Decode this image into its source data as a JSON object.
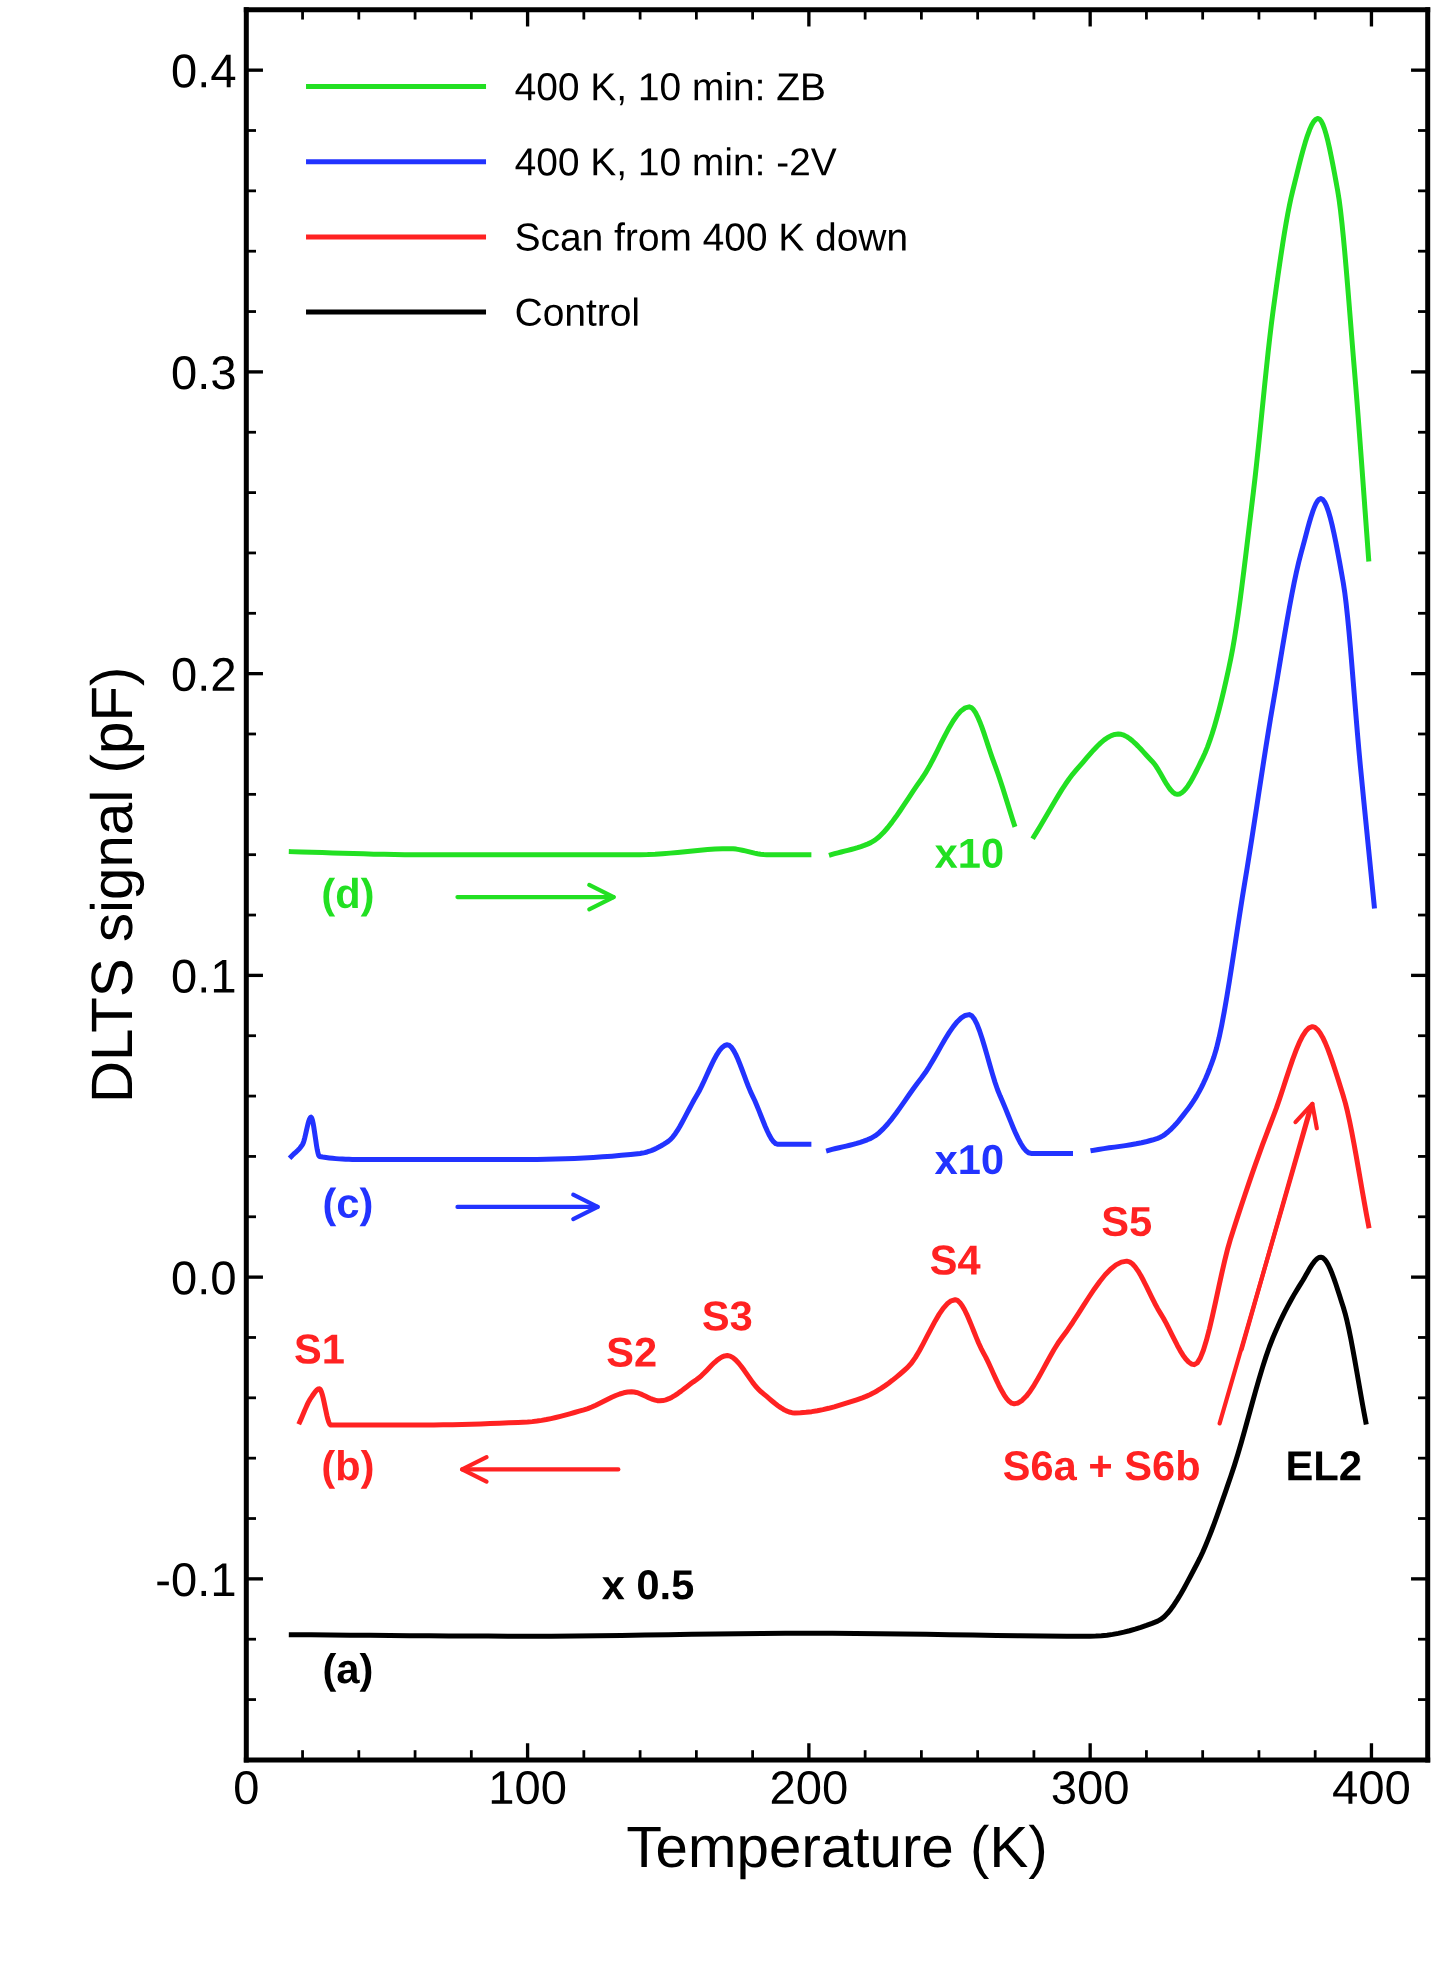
{
  "chart_data": {
    "type": "line",
    "xlabel": "Temperature (K)",
    "ylabel": "DLTS signal (pF)",
    "xlim": [
      0,
      420
    ],
    "ylim": [
      -0.16,
      0.42
    ],
    "xticks": [
      0,
      100,
      200,
      300,
      400
    ],
    "yticks": [
      -0.1,
      {
        "value": 0,
        "label": "0.0"
      },
      0.1,
      0.2,
      0.3,
      0.4
    ],
    "grid": false,
    "legend": "top left",
    "line_style": "solid",
    "marker": "none",
    "series": [
      {
        "name": "400 K, 10 min: ZB",
        "color": "#22e022",
        "x": [
          16,
          60,
          100,
          140,
          172,
          185,
          200,
          201,
          208,
          222,
          240,
          257,
          266,
          273,
          274,
          280,
          295,
          310,
          322,
          331,
          340,
          350,
          358,
          365,
          372,
          381,
          388,
          394,
          399
        ],
        "values": [
          0.141,
          0.14,
          0.14,
          0.14,
          0.142,
          0.14,
          0.14,
          null,
          0.14,
          0.144,
          0.165,
          0.189,
          0.17,
          0.15,
          null,
          0.146,
          0.168,
          0.18,
          0.171,
          0.16,
          0.172,
          0.205,
          0.26,
          0.32,
          0.36,
          0.384,
          0.36,
          0.3,
          0.238
        ]
      },
      {
        "name": "400 K, 10 min: -2V",
        "color": "#2233ff",
        "x": [
          16,
          20,
          23,
          26,
          40,
          100,
          140,
          150,
          160,
          171,
          180,
          189,
          200,
          201,
          207,
          222,
          240,
          257,
          268,
          279,
          293,
          294,
          301,
          324,
          335,
          344,
          355,
          365,
          375,
          382,
          390,
          396,
          401
        ],
        "values": [
          0.04,
          0.044,
          0.053,
          0.04,
          0.039,
          0.039,
          0.041,
          0.045,
          0.06,
          0.077,
          0.06,
          0.044,
          0.044,
          null,
          0.042,
          0.046,
          0.066,
          0.087,
          0.06,
          0.041,
          0.041,
          null,
          0.042,
          0.046,
          0.056,
          0.073,
          0.131,
          0.19,
          0.24,
          0.258,
          0.23,
          0.17,
          0.123
        ]
      },
      {
        "name": "Scan from 400 K down",
        "color": "#ff2222",
        "x": [
          19,
          23,
          26,
          30,
          60,
          100,
          120,
          137,
          147,
          160,
          171,
          183,
          195,
          219,
          235,
          252,
          262,
          273,
          290,
          313,
          325,
          337,
          350,
          365,
          379,
          390,
          399
        ],
        "values": [
          -0.048,
          -0.04,
          -0.037,
          -0.049,
          -0.049,
          -0.048,
          -0.044,
          -0.038,
          -0.041,
          -0.034,
          -0.026,
          -0.038,
          -0.045,
          -0.04,
          -0.03,
          -0.0075,
          -0.025,
          -0.042,
          -0.02,
          0.0053,
          -0.012,
          -0.029,
          0.013,
          0.053,
          0.083,
          0.06,
          0.017
        ]
      },
      {
        "name": "Control",
        "color": "#000000",
        "x": [
          16,
          100,
          200,
          300,
          324,
          338,
          350,
          365,
          375,
          382,
          390,
          398
        ],
        "values": [
          -0.1185,
          -0.119,
          -0.118,
          -0.119,
          -0.114,
          -0.095,
          -0.066,
          -0.02,
          -0.002,
          0.0066,
          -0.01,
          -0.048
        ]
      }
    ],
    "annotations": [
      "x10",
      "x10",
      "(d)",
      "(c)",
      "(b)",
      "(a)",
      "x 0.5",
      {
        "text": "S1",
        "x": 26,
        "y": -0.037
      },
      {
        "text": "S2",
        "x": 137,
        "y": -0.038
      },
      {
        "text": "S3",
        "x": 171,
        "y": -0.026
      },
      {
        "text": "S4",
        "x": 252,
        "y": -0.0075
      },
      {
        "text": "S5",
        "x": 313,
        "y": 0.0053
      },
      "S6a + S6b",
      "EL2"
    ]
  }
}
